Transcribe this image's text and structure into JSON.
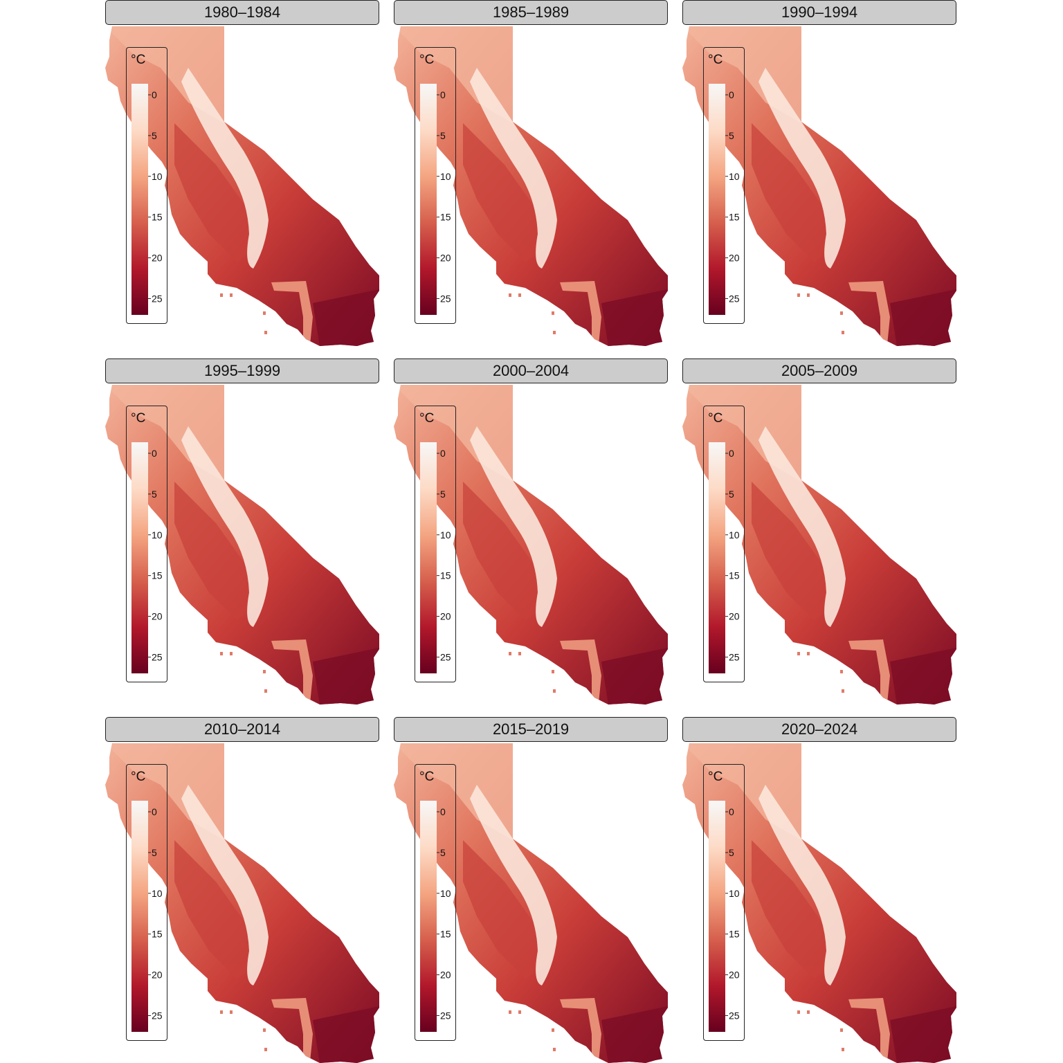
{
  "panels": [
    {
      "title": "1980–1984"
    },
    {
      "title": "1985–1989"
    },
    {
      "title": "1990–1994"
    },
    {
      "title": "1995–1999"
    },
    {
      "title": "2000–2004"
    },
    {
      "title": "2005–2009"
    },
    {
      "title": "2010–2014"
    },
    {
      "title": "2015–2019"
    },
    {
      "title": "2020–2024"
    }
  ],
  "legend": {
    "unit": "°C",
    "ticks": [
      "0",
      "5",
      "10",
      "15",
      "20",
      "25"
    ],
    "colors": [
      "#f7f7f7",
      "#fddbc7",
      "#f4a582",
      "#d6604d",
      "#b2182b",
      "#67001f"
    ]
  },
  "chart_data": {
    "type": "heatmap",
    "facets": [
      "1980–1984",
      "1985–1989",
      "1990–1994",
      "1995–1999",
      "2000–2004",
      "2005–2009",
      "2010–2014",
      "2015–2019",
      "2020–2024"
    ],
    "value_range": [
      0,
      27
    ],
    "legend_ticks": [
      0,
      5,
      10,
      15,
      20,
      25
    ],
    "legend_title": "°C"
  }
}
